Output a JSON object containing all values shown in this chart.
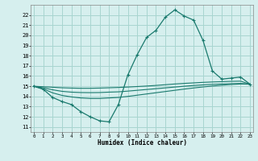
{
  "title": "",
  "xlabel": "Humidex (Indice chaleur)",
  "ylabel": "",
  "background_color": "#d6efee",
  "grid_color": "#a8d5d0",
  "line_color": "#1a7a6e",
  "x_ticks": [
    0,
    1,
    2,
    3,
    4,
    5,
    6,
    7,
    8,
    9,
    10,
    11,
    12,
    13,
    14,
    15,
    16,
    17,
    18,
    19,
    20,
    21,
    22,
    23
  ],
  "y_ticks": [
    11,
    12,
    13,
    14,
    15,
    16,
    17,
    18,
    19,
    20,
    21,
    22
  ],
  "ylim": [
    10.5,
    23.0
  ],
  "xlim": [
    -0.3,
    23.3
  ],
  "humidex": [
    15.0,
    14.7,
    13.9,
    13.5,
    13.2,
    12.5,
    12.0,
    11.6,
    11.5,
    13.2,
    16.1,
    18.1,
    19.8,
    20.5,
    21.8,
    22.5,
    21.9,
    21.5,
    19.5,
    16.5,
    15.7,
    15.8,
    15.9,
    15.2
  ],
  "line2": [
    15.0,
    14.95,
    14.9,
    14.85,
    14.82,
    14.8,
    14.8,
    14.82,
    14.85,
    14.88,
    14.92,
    14.97,
    15.02,
    15.08,
    15.15,
    15.22,
    15.28,
    15.33,
    15.38,
    15.42,
    15.45,
    15.48,
    15.5,
    15.2
  ],
  "line3": [
    15.0,
    14.85,
    14.65,
    14.5,
    14.42,
    14.38,
    14.37,
    14.38,
    14.42,
    14.45,
    14.52,
    14.6,
    14.68,
    14.76,
    14.84,
    14.92,
    15.0,
    15.07,
    15.13,
    15.18,
    15.22,
    15.25,
    15.27,
    15.2
  ],
  "line4": [
    15.0,
    14.75,
    14.35,
    14.1,
    13.95,
    13.85,
    13.8,
    13.8,
    13.85,
    13.9,
    14.0,
    14.12,
    14.24,
    14.36,
    14.48,
    14.6,
    14.72,
    14.83,
    14.93,
    15.02,
    15.1,
    15.17,
    15.22,
    15.2
  ]
}
